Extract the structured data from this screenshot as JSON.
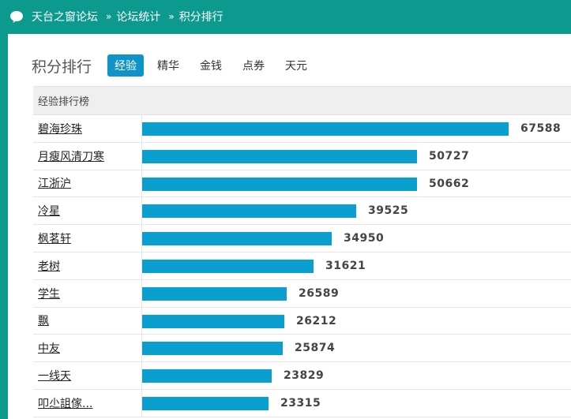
{
  "breadcrumb": {
    "site": "天台之窗论坛",
    "separator": "»",
    "section": "论坛统计",
    "page": "积分排行"
  },
  "title": "积分排行",
  "tabs": [
    {
      "label": "经验",
      "active": true
    },
    {
      "label": "精华",
      "active": false
    },
    {
      "label": "金钱",
      "active": false
    },
    {
      "label": "点券",
      "active": false
    },
    {
      "label": "天元",
      "active": false
    }
  ],
  "board_title": "经验排行榜",
  "max_value": 67588,
  "rows": [
    {
      "name": "碧海珍珠",
      "value": 67588
    },
    {
      "name": "月瘦风清刀寒",
      "value": 50727
    },
    {
      "name": "江浙沪",
      "value": 50662
    },
    {
      "name": "冷星",
      "value": 39525
    },
    {
      "name": "枫茗轩",
      "value": 34950
    },
    {
      "name": "老树",
      "value": 31621
    },
    {
      "name": "学生",
      "value": 26589
    },
    {
      "name": "飘",
      "value": 26212
    },
    {
      "name": "中友",
      "value": 25874
    },
    {
      "name": "一线天",
      "value": 23829
    },
    {
      "name": "叩尐詛傢...",
      "value": 23315
    }
  ],
  "colors": {
    "header_bg": "#0c9a8e",
    "bar": "#0b9fd0",
    "active_tab": "#0f94c7"
  }
}
